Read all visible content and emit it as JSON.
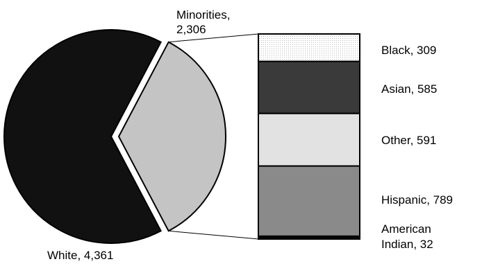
{
  "chart_data": [
    {
      "type": "pie",
      "slices": [
        {
          "label": "White, 4,361",
          "name": "White",
          "value": 4361,
          "color": "#111111"
        },
        {
          "label_lines": [
            "Minorities,",
            "2,306"
          ],
          "name": "Minorities",
          "value": 2306,
          "color": "#c4c4c4",
          "exploded": true
        }
      ]
    },
    {
      "type": "bar",
      "stacked": true,
      "parent": "Minorities",
      "segments": [
        {
          "label_lines": [
            "Black, 309"
          ],
          "name": "Black",
          "value": 309,
          "color": "#ffffff"
        },
        {
          "label_lines": [
            "Asian, 585"
          ],
          "name": "Asian",
          "value": 585,
          "color": "#3a3a3a"
        },
        {
          "label_lines": [
            "Other, 591"
          ],
          "name": "Other",
          "value": 591,
          "color": "#e2e2e2"
        },
        {
          "label_lines": [
            "Hispanic, 789"
          ],
          "name": "Hispanic",
          "value": 789,
          "color": "#8a8a8a"
        },
        {
          "label_lines": [
            "American",
            "Indian, 32"
          ],
          "name": "American Indian",
          "value": 32,
          "color": "#050505"
        }
      ]
    }
  ]
}
